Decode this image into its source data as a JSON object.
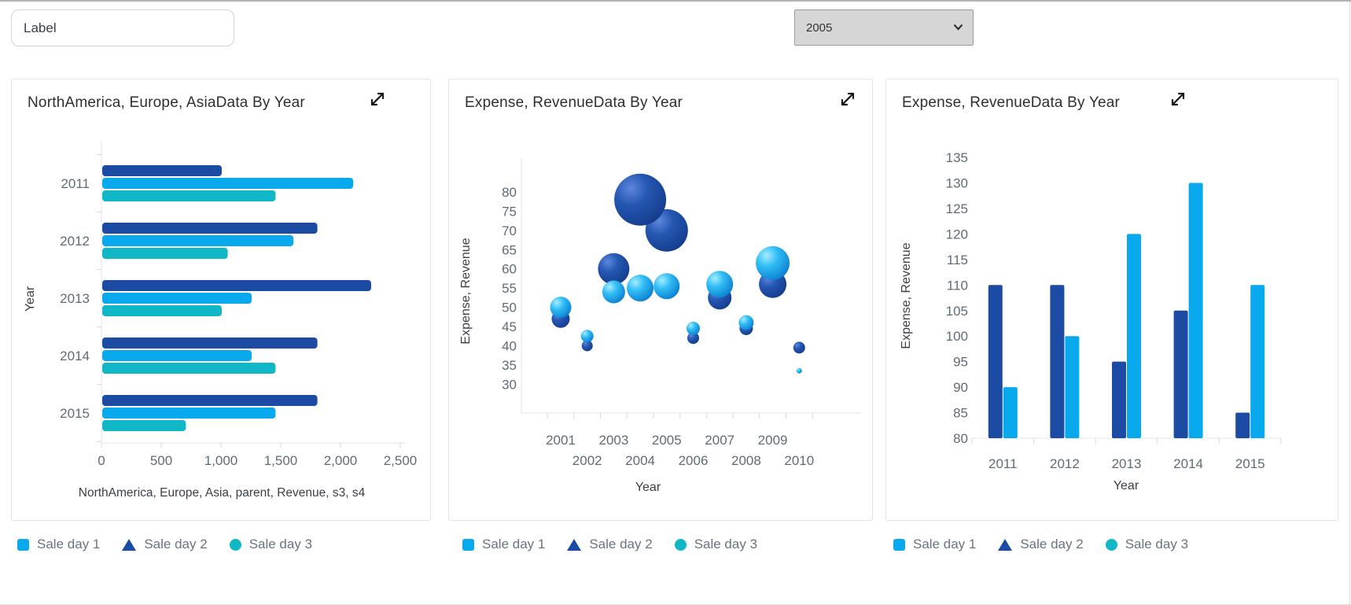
{
  "toolbar": {
    "label_input_value": "Label",
    "year_select_value": "2005"
  },
  "legend_items": [
    {
      "label": "Sale day 1",
      "shape": "square",
      "color": "#09a9ee"
    },
    {
      "label": "Sale day 2",
      "shape": "triangle",
      "color": "#1b4ba3"
    },
    {
      "label": "Sale day 3",
      "shape": "circle",
      "color": "#10b7c6"
    }
  ],
  "chart_data": [
    {
      "type": "bar",
      "orientation": "horizontal",
      "title": "NorthAmerica, Europe, AsiaData By Year",
      "categories": [
        "2011",
        "2012",
        "2013",
        "2014",
        "2015"
      ],
      "series": [
        {
          "name": "Sale day 2",
          "color": "#1b4ba3",
          "values": [
            1000,
            1800,
            2250,
            1800,
            1800
          ]
        },
        {
          "name": "Sale day 1",
          "color": "#09a9ee",
          "values": [
            2100,
            1600,
            1250,
            1250,
            1450
          ]
        },
        {
          "name": "Sale day 3",
          "color": "#10b7c6",
          "values": [
            1450,
            1050,
            1000,
            1450,
            700
          ]
        }
      ],
      "xlabel": "NorthAmerica, Europe, Asia, parent, Revenue, s3, s4",
      "ylabel": "Year",
      "xlim": [
        0,
        2500
      ],
      "xticks": [
        0,
        500,
        1000,
        1500,
        2000,
        2500
      ],
      "xtick_labels": [
        "0",
        "500",
        "1,000",
        "1,500",
        "2,000",
        "2,500"
      ],
      "grid": false,
      "legend_position": "bottom"
    },
    {
      "type": "bubble",
      "title": "Expense, RevenueData By Year",
      "xlabel": "Year",
      "ylabel": "Expense, Revenue",
      "years": [
        2001,
        2002,
        2003,
        2004,
        2005,
        2006,
        2007,
        2008,
        2009,
        2010
      ],
      "ylim": [
        30,
        80
      ],
      "ytick_step": 5,
      "series": [
        {
          "name": "Sale day 2",
          "color": "#1b4ba3",
          "points": [
            {
              "year": 2001,
              "value": 47,
              "r": 11.5
            },
            {
              "year": 2002,
              "value": 40,
              "r": 7
            },
            {
              "year": 2003,
              "value": 60,
              "r": 20
            },
            {
              "year": 2004,
              "value": 78,
              "r": 33
            },
            {
              "year": 2005,
              "value": 70,
              "r": 27
            },
            {
              "year": 2006,
              "value": 42,
              "r": 7.5
            },
            {
              "year": 2007,
              "value": 52.5,
              "r": 15
            },
            {
              "year": 2008,
              "value": 44.5,
              "r": 8.5
            },
            {
              "year": 2009,
              "value": 56,
              "r": 17.5
            },
            {
              "year": 2010,
              "value": 39.5,
              "r": 7.5
            }
          ]
        },
        {
          "name": "Sale day 1",
          "color": "#09a9ee",
          "points": [
            {
              "year": 2001,
              "value": 50,
              "r": 13.5
            },
            {
              "year": 2002,
              "value": 42.5,
              "r": 8
            },
            {
              "year": 2003,
              "value": 54,
              "r": 14.5
            },
            {
              "year": 2004,
              "value": 55,
              "r": 17
            },
            {
              "year": 2005,
              "value": 55.5,
              "r": 16.5
            },
            {
              "year": 2006,
              "value": 44.5,
              "r": 8.5
            },
            {
              "year": 2007,
              "value": 56,
              "r": 17
            },
            {
              "year": 2008,
              "value": 46,
              "r": 9.5
            },
            {
              "year": 2009,
              "value": 61.5,
              "r": 21.5
            },
            {
              "year": 2010,
              "value": 33.5,
              "r": 3.5
            }
          ]
        }
      ],
      "grid": false,
      "legend_position": "bottom"
    },
    {
      "type": "bar",
      "orientation": "vertical",
      "title": "Expense, RevenueData By Year",
      "categories": [
        "2011",
        "2012",
        "2013",
        "2014",
        "2015"
      ],
      "series": [
        {
          "name": "Sale day 2",
          "color": "#1b4ba3",
          "values": [
            110,
            110,
            95,
            105,
            85
          ]
        },
        {
          "name": "Sale day 1",
          "color": "#09a9ee",
          "values": [
            90,
            100,
            120,
            130,
            110
          ]
        }
      ],
      "xlabel": "Year",
      "ylabel": "Expense, Revenue",
      "ylim": [
        80,
        135
      ],
      "yticks": [
        80,
        85,
        90,
        95,
        100,
        105,
        110,
        115,
        120,
        125,
        130,
        135
      ],
      "grid": false,
      "legend_position": "bottom"
    }
  ]
}
